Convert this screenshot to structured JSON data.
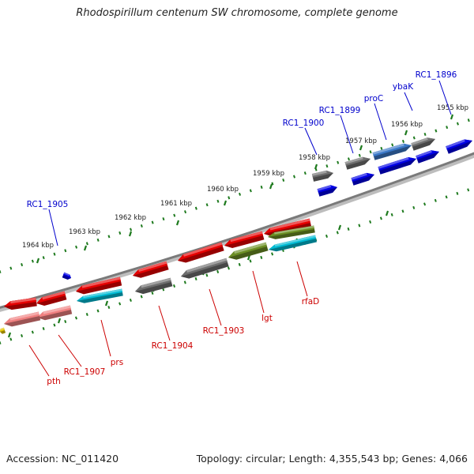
{
  "title": "Rhodospirillum centenum SW chromosome, complete genome",
  "accession_text": "Accession: NC_011420",
  "summary_text": "Topology: circular; Length: 4,355,543 bp; Genes: 4,066",
  "colors": {
    "backbone": "#7a7a7a",
    "tick": "#1e7a1e",
    "label_forward": "#0000cc",
    "label_reverse": "#cc0000",
    "gene_red": "#e60000",
    "gene_pink": "#f08080",
    "gene_blue": "#0000e6",
    "gene_gray": "#6e6e6e",
    "gene_cyan": "#00bcd4",
    "gene_olive": "#6b8e23",
    "gene_steel": "#3a78c8",
    "gene_yellow": "#e6c800"
  },
  "kbp_ticks": [
    "1955 kbp",
    "1956 kbp",
    "1957 kbp",
    "1958 kbp",
    "1959 kbp",
    "1960 kbp",
    "1961 kbp",
    "1962 kbp",
    "1963 kbp",
    "1964 kbp"
  ],
  "forward_gene_labels": [
    "RC1_1896",
    "ybaK",
    "proC",
    "RC1_1899",
    "RC1_1900",
    "RC1_1905"
  ],
  "reverse_gene_labels": [
    "rfaD",
    "lgt",
    "RC1_1903",
    "RC1_1904",
    "prs",
    "RC1_1907",
    "pth"
  ],
  "genes": [
    {
      "strand": "forward",
      "color": "blue"
    },
    {
      "strand": "forward",
      "color": "gray"
    },
    {
      "strand": "forward",
      "color": "blue"
    },
    {
      "strand": "forward",
      "color": "steel"
    },
    {
      "strand": "forward",
      "color": "blue"
    },
    {
      "strand": "forward",
      "color": "gray"
    },
    {
      "strand": "forward",
      "color": "blue"
    },
    {
      "strand": "forward",
      "color": "gray"
    },
    {
      "strand": "forward",
      "color": "blue"
    },
    {
      "strand": "forward",
      "color": "blue"
    },
    {
      "strand": "reverse",
      "color": "red"
    },
    {
      "strand": "reverse",
      "color": "olive"
    },
    {
      "strand": "reverse",
      "color": "cyan"
    },
    {
      "strand": "reverse",
      "color": "red"
    },
    {
      "strand": "reverse",
      "color": "olive"
    },
    {
      "strand": "reverse",
      "color": "red"
    },
    {
      "strand": "reverse",
      "color": "gray"
    },
    {
      "strand": "reverse",
      "color": "red"
    },
    {
      "strand": "reverse",
      "color": "gray"
    },
    {
      "strand": "reverse",
      "color": "red"
    },
    {
      "strand": "reverse",
      "color": "cyan"
    },
    {
      "strand": "reverse",
      "color": "red"
    },
    {
      "strand": "reverse",
      "color": "pink"
    },
    {
      "strand": "reverse",
      "color": "red"
    },
    {
      "strand": "reverse",
      "color": "pink"
    },
    {
      "strand": "reverse",
      "color": "yellow"
    }
  ]
}
